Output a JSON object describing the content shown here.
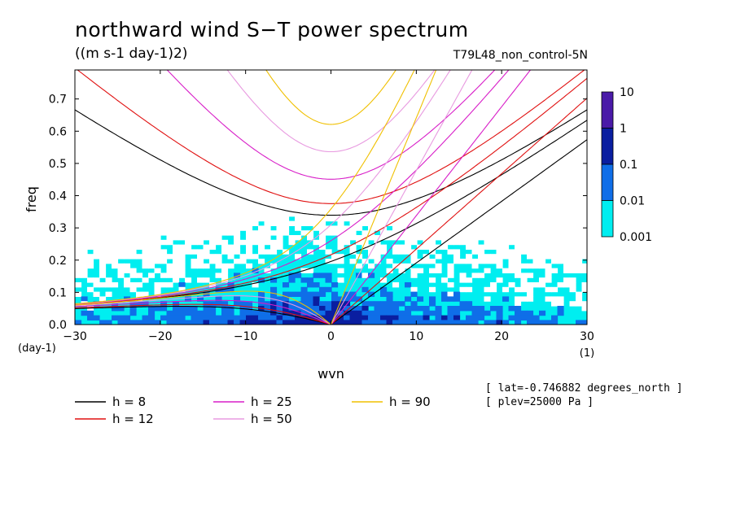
{
  "header": {
    "title": "northward wind S−T power spectrum",
    "subtitle": "((m s-1 day-1)2)",
    "run": "T79L48_non_control-5N"
  },
  "meta": {
    "lat": "[ lat=-0.746882 degrees_north ]",
    "plev": "[ plev=25000 Pa ]"
  },
  "chart_data": {
    "type": "heatmap",
    "title": "northward wind S−T power spectrum",
    "subtitle": "((m s-1 day-1)2)",
    "xlabel": "wvn",
    "ylabel": "freq",
    "x_unit": "(1)",
    "y_unit": "(day-1)",
    "xlim": [
      -30,
      30
    ],
    "ylim": [
      0,
      0.79
    ],
    "xticks": [
      -30,
      -20,
      -10,
      0,
      10,
      20,
      30
    ],
    "yticks": [
      0.0,
      0.1,
      0.2,
      0.3,
      0.4,
      0.5,
      0.6,
      0.7
    ],
    "colorbar": {
      "scale": "log",
      "levels": [
        0.001,
        0.01,
        0.1,
        1,
        10
      ],
      "colors": [
        "#ffffff",
        "#00eef0",
        "#0f6ee8",
        "#0a1ea0",
        "#4a1aa8"
      ]
    },
    "dispersion_curves": [
      {
        "name": "h =  8",
        "h": 8,
        "color": "#000000"
      },
      {
        "name": "h = 12",
        "h": 12,
        "color": "#e01010"
      },
      {
        "name": "h = 25",
        "h": 25,
        "color": "#d81ec8"
      },
      {
        "name": "h = 50",
        "h": 50,
        "color": "#e89ae0"
      },
      {
        "name": "h = 90",
        "h": 90,
        "color": "#f0c000"
      }
    ]
  },
  "colors": {
    "white": "#ffffff",
    "cyan": "#00eef0",
    "blue": "#0f6ee8",
    "dark_blue": "#0a1ea0",
    "purple": "#4a1aa8"
  }
}
